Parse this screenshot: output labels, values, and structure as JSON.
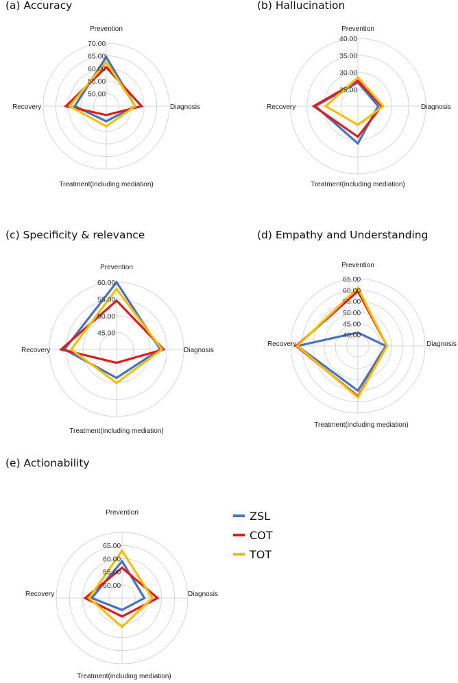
{
  "colors": {
    "ZSL": "#4472c4",
    "COT": "#e31a1c",
    "TOT": "#f5bf00"
  },
  "legend": [
    {
      "name": "ZSL",
      "color": "#4472c4"
    },
    {
      "name": "COT",
      "color": "#e31a1c"
    },
    {
      "name": "TOT",
      "color": "#f5bf00"
    }
  ],
  "chart_data": [
    {
      "type": "radar",
      "title": "(a) Accuracy",
      "axes": [
        "Prevention",
        "Diagnosis",
        "Treatment(including mediation)",
        "Recovery"
      ],
      "ticks": [
        50.0,
        55.0,
        60.0,
        65.0,
        70.0
      ],
      "tick_labels": [
        "50.00",
        "55.00",
        "60.00",
        "65.00",
        "70.00"
      ],
      "range": [
        45,
        70
      ],
      "series": [
        {
          "name": "ZSL",
          "values": [
            64.5,
            56.5,
            51.0,
            57.5
          ]
        },
        {
          "name": "COT",
          "values": [
            60.5,
            59.0,
            48.5,
            61.0
          ]
        },
        {
          "name": "TOT",
          "values": [
            62.5,
            56.5,
            53.0,
            59.5
          ]
        }
      ]
    },
    {
      "type": "radar",
      "title": "(b) Hallucination",
      "axes": [
        "Prevention",
        "Diagnosis",
        "Treatment(including mediation)",
        "Recovery"
      ],
      "ticks": [
        25.0,
        30.0,
        35.0,
        40.0
      ],
      "tick_labels": [
        "25.00",
        "30.00",
        "35.00",
        "40.00"
      ],
      "range": [
        20,
        40
      ],
      "series": [
        {
          "name": "ZSL",
          "values": [
            27.0,
            26.0,
            31.0,
            32.5
          ]
        },
        {
          "name": "COT",
          "values": [
            27.5,
            27.0,
            29.0,
            33.0
          ]
        },
        {
          "name": "TOT",
          "values": [
            28.5,
            27.5,
            25.5,
            29.5
          ]
        }
      ]
    },
    {
      "type": "radar",
      "title": "(c) Specificity & relevance",
      "axes": [
        "Prevention",
        "Diagnosis",
        "Treatment(including mediation)",
        "Recovery"
      ],
      "ticks": [
        45.0,
        50.0,
        55.0,
        60.0
      ],
      "tick_labels": [
        "45.00",
        "50.00",
        "55.00",
        "60.00"
      ],
      "range": [
        40,
        60
      ],
      "series": [
        {
          "name": "ZSL",
          "values": [
            60.0,
            53.0,
            48.5,
            55.5
          ]
        },
        {
          "name": "COT",
          "values": [
            54.5,
            54.0,
            44.0,
            56.5
          ]
        },
        {
          "name": "TOT",
          "values": [
            58.0,
            53.5,
            50.0,
            53.5
          ]
        }
      ]
    },
    {
      "type": "radar",
      "title": "(d) Empathy and Understanding",
      "axes": [
        "Prevention",
        "Diagnosis",
        "Treatment(including mediation)",
        "Recovery"
      ],
      "ticks": [
        40.0,
        45.0,
        50.0,
        55.0,
        60.0,
        65.0
      ],
      "tick_labels": [
        "40.00",
        "45.00",
        "50.00",
        "55.00",
        "60.00",
        "65.00"
      ],
      "range": [
        35,
        65
      ],
      "series": [
        {
          "name": "ZSL",
          "values": [
            41.0,
            47.5,
            55.0,
            62.0
          ]
        },
        {
          "name": "COT",
          "values": [
            59.5,
            48.0,
            57.5,
            62.5
          ]
        },
        {
          "name": "TOT",
          "values": [
            61.0,
            48.0,
            58.0,
            62.0
          ]
        }
      ]
    },
    {
      "type": "radar",
      "title": "(e) Actionability",
      "axes": [
        "Prevention",
        "Diagnosis",
        "Treatment(including mediation)",
        "Recovery"
      ],
      "ticks": [
        50.0,
        55.0,
        60.0,
        65.0
      ],
      "tick_labels": [
        "50.00",
        "55.00",
        "60.00",
        "65.00"
      ],
      "range": [
        45,
        70
      ],
      "series": [
        {
          "name": "ZSL",
          "values": [
            59.0,
            53.5,
            49.5,
            56.5
          ]
        },
        {
          "name": "COT",
          "values": [
            56.5,
            58.5,
            52.0,
            59.0
          ]
        },
        {
          "name": "TOT",
          "values": [
            63.0,
            56.5,
            56.0,
            57.5
          ]
        }
      ]
    }
  ]
}
